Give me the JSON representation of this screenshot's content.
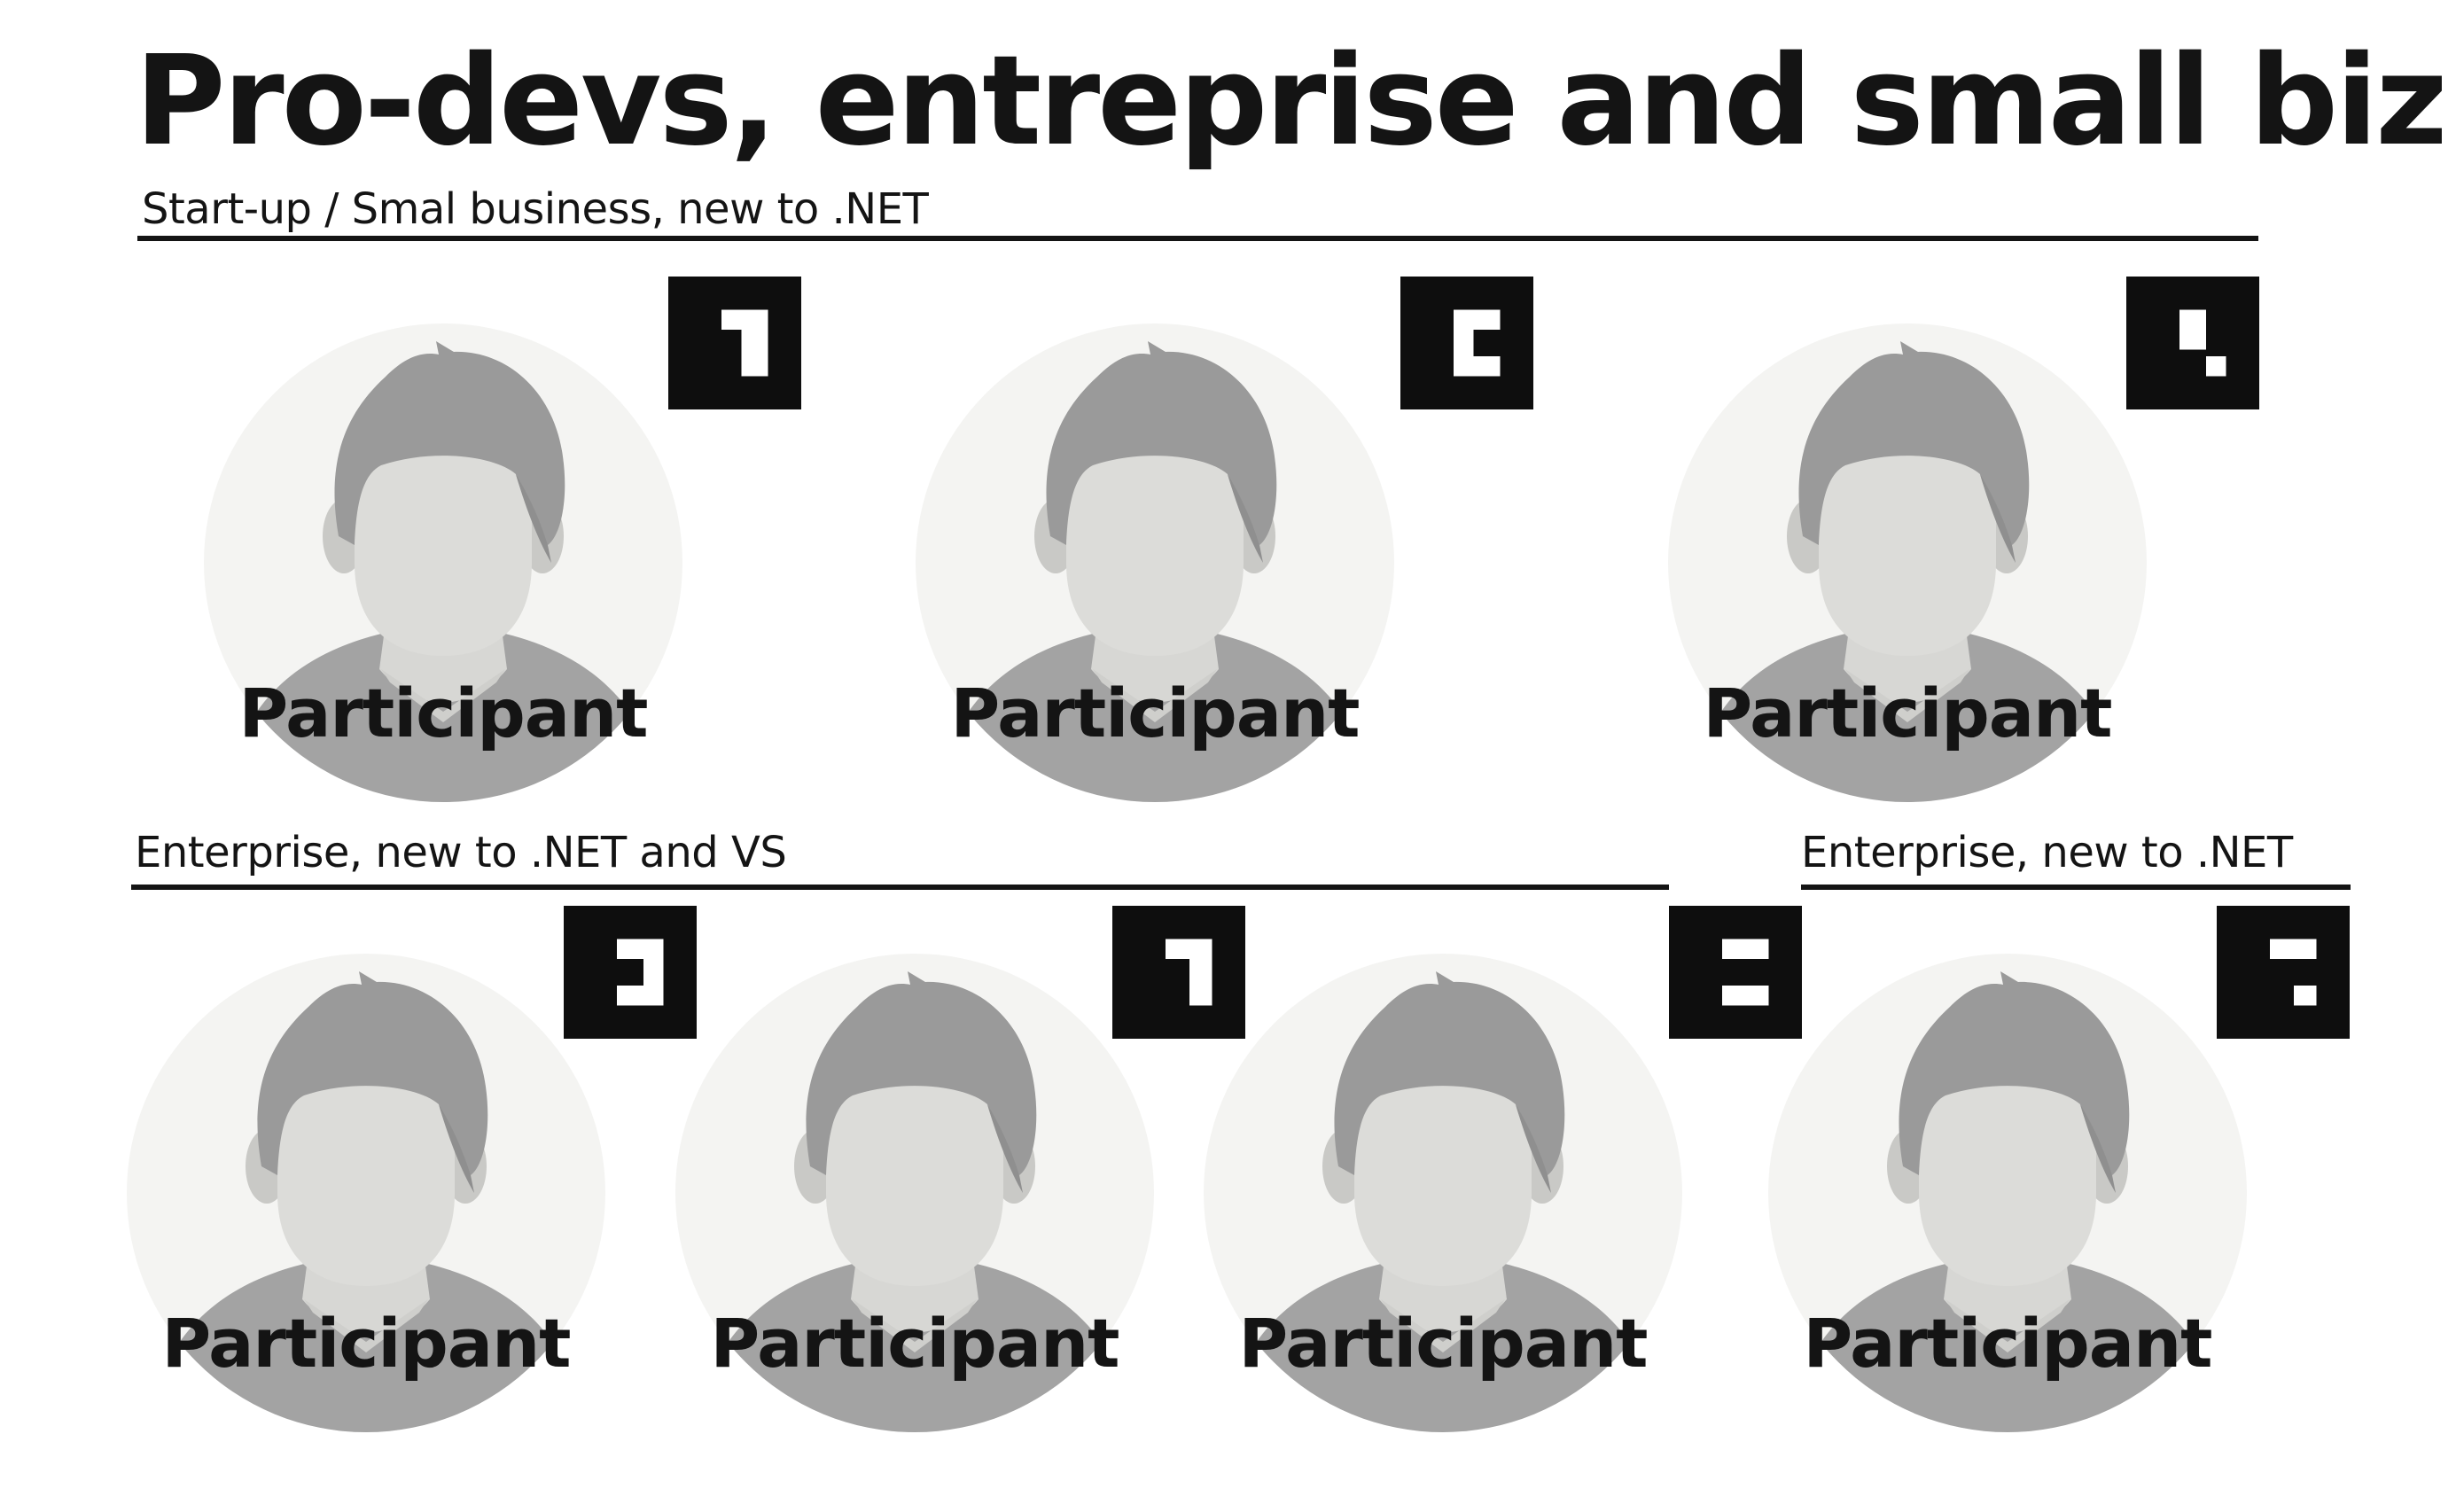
{
  "title": "Pro-devs, entreprise and small biz",
  "sections": [
    {
      "label": "Start-up / Smal business, new to .NET"
    },
    {
      "label": "Enterprise, new to .NET and VS"
    },
    {
      "label": "Enterprise, new to .NET"
    }
  ],
  "participants": [
    {
      "label": "Participant",
      "icon": "person-placeholder-icon",
      "marker": "fiducial-marker-icon"
    },
    {
      "label": "Participant",
      "icon": "person-placeholder-icon",
      "marker": "fiducial-marker-icon"
    },
    {
      "label": "Participant",
      "icon": "person-placeholder-icon",
      "marker": "fiducial-marker-icon"
    },
    {
      "label": "Participant",
      "icon": "person-placeholder-icon",
      "marker": "fiducial-marker-icon"
    },
    {
      "label": "Participant",
      "icon": "person-placeholder-icon",
      "marker": "fiducial-marker-icon"
    },
    {
      "label": "Participant",
      "icon": "person-placeholder-icon",
      "marker": "fiducial-marker-icon"
    },
    {
      "label": "Participant",
      "icon": "person-placeholder-icon",
      "marker": "fiducial-marker-icon"
    }
  ],
  "colors": {
    "text": "#141414",
    "circle": "#f4f4f2",
    "hair": "#9a9a9a",
    "face": "#dcdcd9",
    "ear": "#c9c9c6",
    "neck": "#d7d7d4",
    "shirt": "#a3a3a3",
    "marker": "#0e0e0e"
  }
}
